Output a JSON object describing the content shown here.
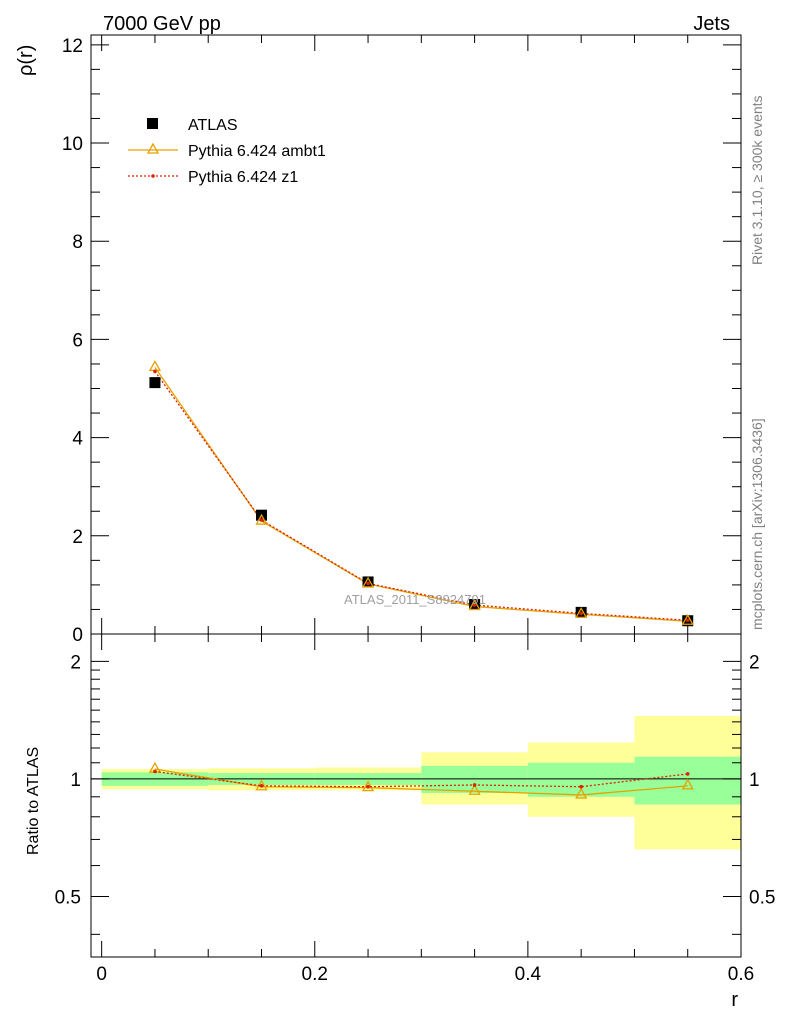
{
  "header": {
    "energy_label": "7000 GeV pp",
    "process_label": "Jets",
    "side_label_top": "Rivet 3.1.10, ≥ 300k events",
    "side_label_bottom": "mcplots.cern.ch [arXiv:1306.3436]",
    "watermark": "ATLAS_2011_S8924791"
  },
  "colors": {
    "data": "#000000",
    "ambt1": "#e8a000",
    "z1": "#dd2200",
    "band_inner": "#99ff99",
    "band_outer": "#ffff99"
  },
  "chart_data": [
    {
      "id": "main",
      "type": "scatter",
      "ylabel": "ρ(r)",
      "xlim": [
        -0.01,
        0.6
      ],
      "ylim": [
        0,
        12.2
      ],
      "xticks": [
        0,
        0.2,
        0.4,
        0.6
      ],
      "yticks": [
        0,
        2,
        4,
        6,
        8,
        10,
        12
      ],
      "ytick_labels": [
        "0",
        "2",
        "4",
        "6",
        "8",
        "10",
        "12"
      ],
      "legend": [
        "ATLAS",
        "Pythia 6.424 ambt1",
        "Pythia 6.424 z1"
      ],
      "legend_position": "top-left",
      "series": [
        {
          "name": "ATLAS",
          "x": [
            0.05,
            0.15,
            0.25,
            0.35,
            0.45,
            0.55
          ],
          "y": [
            5.12,
            2.42,
            1.06,
            0.6,
            0.44,
            0.27
          ],
          "marker": "square"
        },
        {
          "name": "Pythia 6.424 ambt1",
          "x": [
            0.05,
            0.15,
            0.25,
            0.35,
            0.45,
            0.55
          ],
          "y": [
            5.43,
            2.3,
            1.02,
            0.56,
            0.4,
            0.26
          ],
          "marker": "triangle"
        },
        {
          "name": "Pythia 6.424 z1",
          "x": [
            0.05,
            0.15,
            0.25,
            0.35,
            0.45,
            0.55
          ],
          "y": [
            5.35,
            2.32,
            1.03,
            0.59,
            0.42,
            0.28
          ],
          "marker": "dot"
        }
      ]
    },
    {
      "id": "ratio",
      "type": "line",
      "ylabel": "Ratio to ATLAS",
      "xlabel": "r",
      "xlim": [
        -0.01,
        0.6
      ],
      "ylim": [
        0.35,
        2.35
      ],
      "xticks": [
        0,
        0.2,
        0.4,
        0.6
      ],
      "xtick_labels": [
        "0",
        "0.2",
        "0.4",
        "0.6"
      ],
      "yticks": [
        0.5,
        1,
        2
      ],
      "ytick_labels": [
        "0.5",
        "1",
        "2"
      ],
      "bins": [
        [
          0,
          0.1
        ],
        [
          0.1,
          0.2
        ],
        [
          0.2,
          0.3
        ],
        [
          0.3,
          0.4
        ],
        [
          0.4,
          0.5
        ],
        [
          0.5,
          0.6
        ]
      ],
      "band_inner": [
        [
          0.96,
          1.04
        ],
        [
          0.965,
          1.035
        ],
        [
          0.965,
          1.035
        ],
        [
          0.92,
          1.08
        ],
        [
          0.9,
          1.1
        ],
        [
          0.86,
          1.14
        ]
      ],
      "band_outer": [
        [
          0.94,
          1.06
        ],
        [
          0.935,
          1.065
        ],
        [
          0.935,
          1.07
        ],
        [
          0.86,
          1.17
        ],
        [
          0.8,
          1.24
        ],
        [
          0.66,
          1.45
        ]
      ],
      "series": [
        {
          "name": "Pythia 6.424 ambt1",
          "x": [
            0.05,
            0.15,
            0.25,
            0.35,
            0.45,
            0.55
          ],
          "y": [
            1.06,
            0.955,
            0.95,
            0.93,
            0.91,
            0.96
          ],
          "marker": "triangle"
        },
        {
          "name": "Pythia 6.424 z1",
          "x": [
            0.05,
            0.15,
            0.25,
            0.35,
            0.45,
            0.55
          ],
          "y": [
            1.045,
            0.96,
            0.955,
            0.965,
            0.955,
            1.03
          ],
          "marker": "dot"
        }
      ]
    }
  ]
}
